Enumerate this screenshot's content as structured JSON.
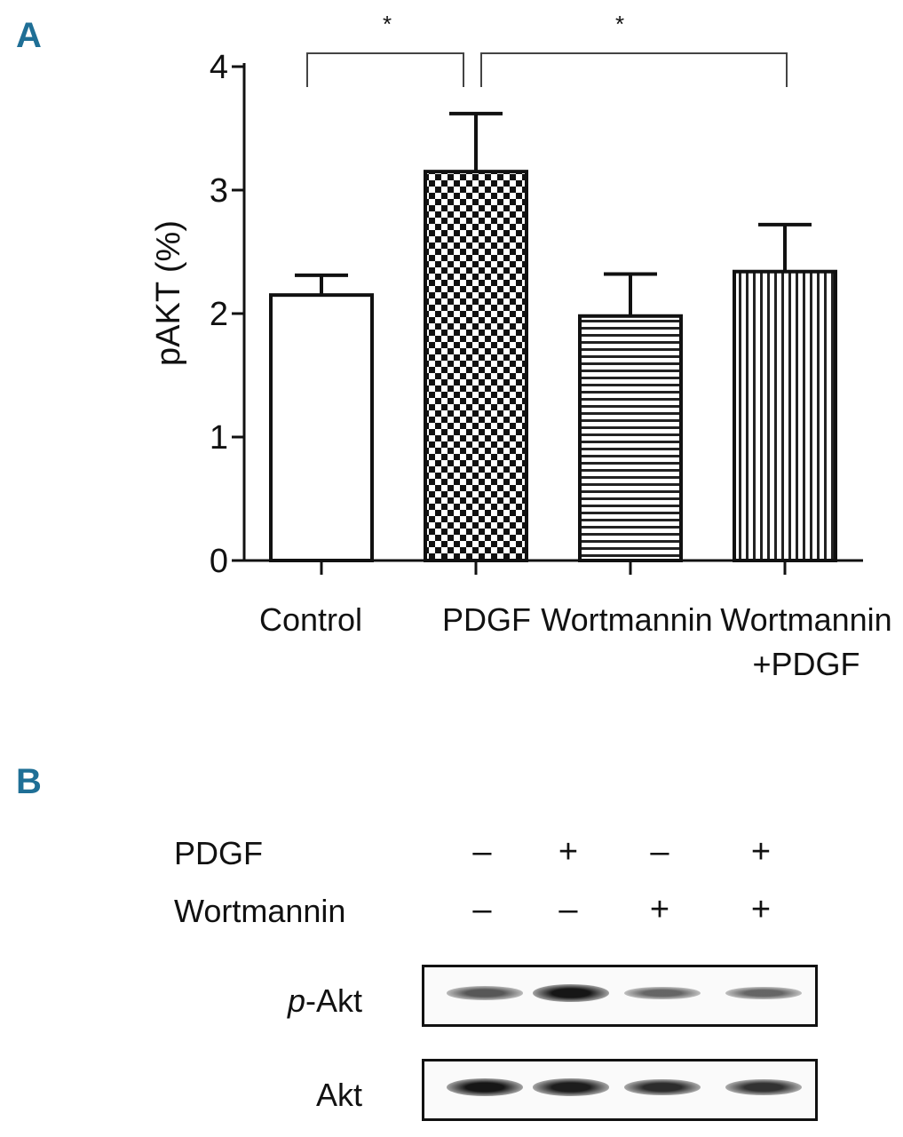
{
  "panel_a_label": "A",
  "panel_b_label": "B",
  "chart_data": {
    "type": "bar",
    "title": "",
    "xlabel": "",
    "ylabel": "pAKT (%)",
    "ylim": [
      0,
      4
    ],
    "yticks": [
      0,
      1,
      2,
      3,
      4
    ],
    "categories": [
      "Control",
      "PDGF",
      "Wortmannin",
      "Wortmannin\n+PDGF"
    ],
    "values": [
      2.15,
      3.15,
      1.98,
      2.34
    ],
    "errors": [
      0.16,
      0.47,
      0.34,
      0.38
    ],
    "patterns": [
      "none",
      "checker",
      "horizontal",
      "vertical"
    ],
    "significance": [
      {
        "from": 0,
        "to": 1,
        "label": "*"
      },
      {
        "from": 1,
        "to": 3,
        "label": "*"
      }
    ]
  },
  "blot": {
    "treatments": [
      {
        "name": "PDGF",
        "signs": [
          "–",
          "+",
          "–",
          "+"
        ]
      },
      {
        "name": "Wortmannin",
        "signs": [
          "–",
          "–",
          "+",
          "+"
        ]
      }
    ],
    "rows": [
      {
        "prefix": "p",
        "label": "-Akt",
        "intensities": [
          0.55,
          1.0,
          0.45,
          0.45
        ]
      },
      {
        "prefix": "",
        "label": "Akt",
        "intensities": [
          1.0,
          0.95,
          0.85,
          0.8
        ]
      }
    ]
  }
}
